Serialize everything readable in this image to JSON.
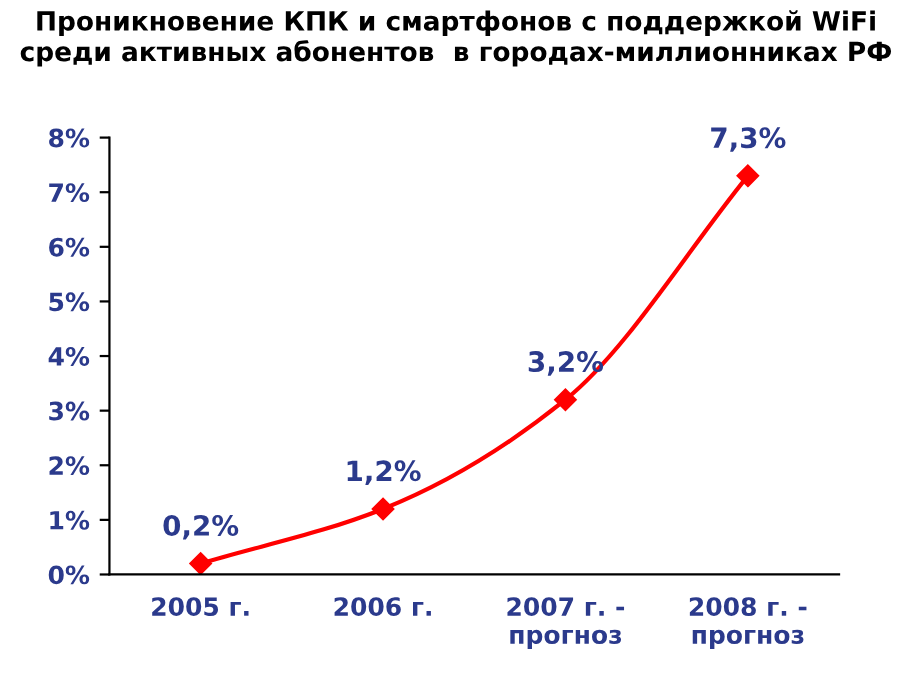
{
  "chart_data": {
    "type": "line",
    "title": "Проникновение КПК и смартфонов с поддержкой WiFi\nсреди активных абонентов  в городах-миллионниках РФ",
    "categories": [
      "2005 г.",
      "2006 г.",
      "2007 г. -\nпрогноз",
      "2008 г. -\nпрогноз"
    ],
    "series": [
      {
        "color": "#ff0000",
        "values": [
          0.2,
          1.2,
          3.2,
          7.3
        ],
        "value_labels": [
          "0,2%",
          "1,2%",
          "3,2%",
          "7,3%"
        ]
      }
    ],
    "ylim": [
      0,
      8
    ],
    "yticks": [
      {
        "value": 0,
        "label": "0%"
      },
      {
        "value": 1,
        "label": "1%"
      },
      {
        "value": 2,
        "label": "2%"
      },
      {
        "value": 3,
        "label": "3%"
      },
      {
        "value": 4,
        "label": "4%"
      },
      {
        "value": 5,
        "label": "5%"
      },
      {
        "value": 6,
        "label": "6%"
      },
      {
        "value": 7,
        "label": "7%"
      },
      {
        "value": 8,
        "label": "8%"
      }
    ],
    "marker": "diamond",
    "line_style": "solid",
    "grid": false,
    "legend": false
  }
}
